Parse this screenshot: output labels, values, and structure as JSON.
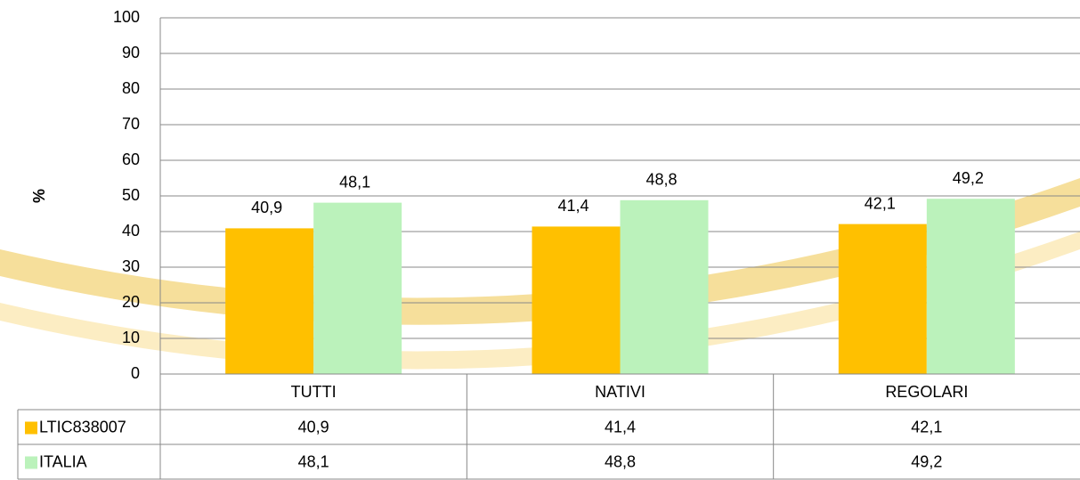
{
  "chart_data": {
    "type": "bar",
    "y_label": "%",
    "categories": [
      "TUTTI",
      "NATIVI",
      "REGOLARI"
    ],
    "series": [
      {
        "name": "LTIC838007",
        "color": "#ffc000",
        "values": [
          40.9,
          41.4,
          42.1
        ],
        "value_labels": [
          "40,9",
          "41,4",
          "42,1"
        ]
      },
      {
        "name": "ITALIA",
        "color": "#bbf2bb",
        "values": [
          48.1,
          48.8,
          49.2
        ],
        "value_labels": [
          "48,1",
          "48,8",
          "49,2"
        ]
      }
    ],
    "ylim": [
      0,
      100
    ],
    "yticks": [
      0,
      10,
      20,
      30,
      40,
      50,
      60,
      70,
      80,
      90,
      100
    ],
    "grid": true,
    "data_table": true
  }
}
